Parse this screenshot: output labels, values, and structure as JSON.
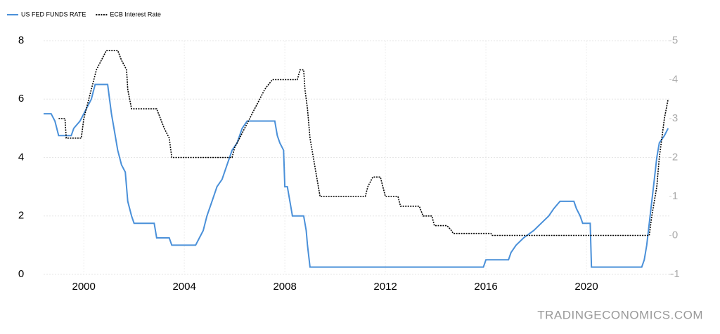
{
  "chart_data": {
    "type": "line",
    "legend": "top-left",
    "grid": true,
    "source": "TRADINGECONOMICS.COM",
    "xlim": [
      1998.4,
      2023.3
    ],
    "xticks": [
      2000,
      2004,
      2008,
      2012,
      2016,
      2020
    ],
    "ylim": [
      0,
      8
    ],
    "yticks": [
      0,
      2,
      4,
      6,
      8
    ],
    "y2lim": [
      -1,
      5
    ],
    "y2ticks": [
      -1,
      0,
      1,
      2,
      3,
      4,
      5
    ],
    "series": [
      {
        "name": "US FED FUNDS RATE",
        "color": "#4a90d9",
        "x": [
          1998.4,
          1998.7,
          1998.85,
          1999.0,
          1999.5,
          1999.6,
          1999.85,
          2000.0,
          2000.3,
          2000.45,
          2000.95,
          2001.1,
          2001.2,
          2001.35,
          2001.5,
          2001.65,
          2001.75,
          2001.9,
          2002.0,
          2002.8,
          2002.9,
          2003.4,
          2003.5,
          2004.45,
          2004.6,
          2004.75,
          2004.9,
          2005.1,
          2005.3,
          2005.5,
          2005.7,
          2005.9,
          2006.1,
          2006.3,
          2006.5,
          2007.6,
          2007.7,
          2007.8,
          2007.95,
          2008.0,
          2008.1,
          2008.3,
          2008.75,
          2008.85,
          2008.9,
          2009.0,
          2015.9,
          2016.0,
          2016.9,
          2017.0,
          2017.2,
          2017.5,
          2017.9,
          2018.2,
          2018.5,
          2018.7,
          2018.95,
          2019.5,
          2019.6,
          2019.75,
          2019.85,
          2020.15,
          2020.2,
          2022.2,
          2022.3,
          2022.4,
          2022.5,
          2022.6,
          2022.7,
          2022.8,
          2022.9,
          2023.1,
          2023.25
        ],
        "values": [
          5.5,
          5.5,
          5.25,
          4.75,
          4.75,
          5.0,
          5.25,
          5.5,
          6.0,
          6.5,
          6.5,
          5.5,
          5.0,
          4.25,
          3.75,
          3.5,
          2.5,
          2.0,
          1.75,
          1.75,
          1.25,
          1.25,
          1.0,
          1.0,
          1.25,
          1.5,
          2.0,
          2.5,
          3.0,
          3.25,
          3.75,
          4.25,
          4.5,
          5.0,
          5.25,
          5.25,
          4.75,
          4.5,
          4.25,
          3.0,
          3.0,
          2.0,
          2.0,
          1.5,
          1.0,
          0.25,
          0.25,
          0.5,
          0.5,
          0.75,
          1.0,
          1.25,
          1.5,
          1.75,
          2.0,
          2.25,
          2.5,
          2.5,
          2.25,
          2.0,
          1.75,
          1.75,
          0.25,
          0.25,
          0.5,
          1.0,
          1.75,
          2.5,
          3.25,
          4.0,
          4.5,
          4.75,
          5.0
        ]
      },
      {
        "name": "ECB Interest Rate",
        "color": "#000000",
        "axis": "y2",
        "x": [
          1999.0,
          1999.25,
          1999.3,
          1999.9,
          2000.0,
          2000.2,
          2000.5,
          2000.7,
          2000.9,
          2001.35,
          2001.5,
          2001.7,
          2001.75,
          2001.9,
          2002.9,
          2003.2,
          2003.4,
          2003.5,
          2005.9,
          2006.0,
          2006.2,
          2006.4,
          2006.6,
          2006.8,
          2007.2,
          2007.5,
          2008.5,
          2008.6,
          2008.75,
          2008.8,
          2008.9,
          2009.0,
          2009.2,
          2009.4,
          2011.2,
          2011.3,
          2011.5,
          2011.8,
          2011.9,
          2012.0,
          2012.5,
          2012.6,
          2013.35,
          2013.5,
          2013.85,
          2013.95,
          2014.45,
          2014.6,
          2014.7,
          2016.2,
          2016.25,
          2022.5,
          2022.6,
          2022.8,
          2022.9,
          2023.1,
          2023.25
        ],
        "values": [
          3.0,
          3.0,
          2.5,
          2.5,
          3.0,
          3.5,
          4.25,
          4.5,
          4.75,
          4.75,
          4.5,
          4.25,
          3.75,
          3.25,
          3.25,
          2.75,
          2.5,
          2.0,
          2.0,
          2.25,
          2.5,
          2.75,
          3.0,
          3.25,
          3.75,
          4.0,
          4.0,
          4.25,
          4.25,
          3.75,
          3.25,
          2.5,
          1.75,
          1.0,
          1.0,
          1.25,
          1.5,
          1.5,
          1.25,
          1.0,
          1.0,
          0.75,
          0.75,
          0.5,
          0.5,
          0.25,
          0.25,
          0.15,
          0.05,
          0.05,
          0,
          0,
          0.5,
          1.25,
          2.0,
          3.0,
          3.5
        ]
      }
    ]
  }
}
